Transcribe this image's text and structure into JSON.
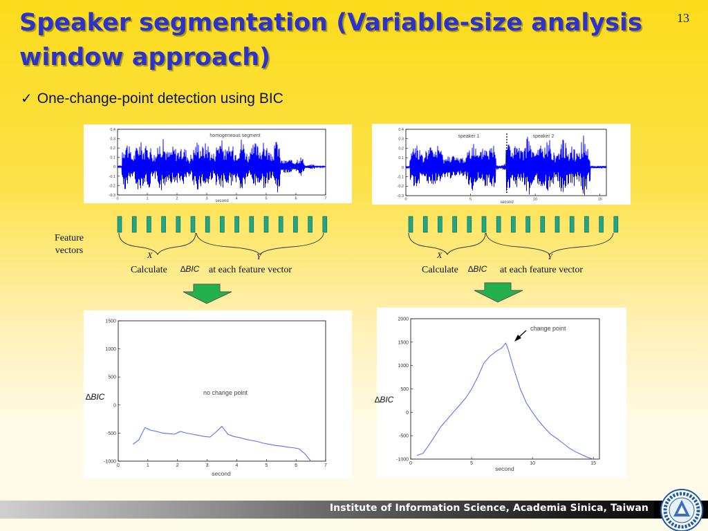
{
  "slide": {
    "title": "Speaker segmentation (Variable-size analysis window approach)",
    "page_number": "13",
    "bullet_mark": "✓",
    "bullet_text": "One-change-point detection using BIC",
    "footer_text": "Institute of Information Science, Academia Sinica, Taiwan",
    "logo_icon": "academia-sinica-seal-icon"
  },
  "diagram": {
    "feature_vectors_label": [
      "Feature",
      "vectors"
    ],
    "x_label": "X",
    "y_label": "Y",
    "calculate_label": "Calculate",
    "delta_symbol": "∆",
    "bic_label": "BIC",
    "at_each_label": "at each feature vector",
    "vector_count": 15,
    "vector_color": "#1fa58a",
    "arrow_color": "#22b14c"
  },
  "left": {
    "waveform": {
      "title": "homogeneous segment",
      "xlabel": "second",
      "xticks": [
        "0",
        "1",
        "2",
        "3",
        "4",
        "5",
        "6",
        "7"
      ],
      "yticks": [
        "0.4",
        "0.3",
        "0.2",
        "0.1",
        "0",
        "-0.1",
        "-0.2",
        "-0.3"
      ],
      "xlim": [
        0,
        7
      ],
      "ylim": [
        -0.3,
        0.4
      ],
      "color": "#0000ff"
    },
    "bic_plot": {
      "annotation": "no change point",
      "xlabel": "second",
      "ylabel": "∆BIC",
      "xticks": [
        "0",
        "1",
        "2",
        "3",
        "4",
        "5",
        "6",
        "7"
      ],
      "yticks": [
        "1500",
        "1000",
        "500",
        "0",
        "-500",
        "-1000"
      ],
      "xlim": [
        0,
        7
      ],
      "ylim": [
        -1000,
        1500
      ],
      "color": "#5a72f0"
    }
  },
  "right": {
    "waveform": {
      "speaker1": "speaker 1",
      "speaker2": "speaker 2",
      "xlabel": "second",
      "xticks": [
        "0",
        "5",
        "10",
        "15"
      ],
      "yticks": [
        "0.4",
        "0.3",
        "0.2",
        "0.1",
        "0",
        "-0.1",
        "-0.2",
        "-0.3"
      ],
      "xlim": [
        0,
        15.5
      ],
      "ylim": [
        -0.3,
        0.4
      ],
      "change_at": 7.8,
      "color": "#0000ff"
    },
    "bic_plot": {
      "annotation": "change point",
      "xlabel": "second",
      "ylabel": "∆BIC",
      "xticks": [
        "0",
        "5",
        "10",
        "15"
      ],
      "yticks": [
        "2000",
        "1500",
        "1000",
        "500",
        "0",
        "-500",
        "-1000"
      ],
      "xlim": [
        0,
        15.5
      ],
      "ylim": [
        -1000,
        2000
      ],
      "color": "#5a72f0"
    }
  },
  "chart_data": [
    {
      "type": "line",
      "title": "no change point",
      "xlabel": "second",
      "ylabel": "∆BIC",
      "xlim": [
        0,
        7
      ],
      "ylim": [
        -1000,
        1500
      ],
      "x": [
        0.5,
        0.7,
        0.9,
        1.1,
        1.3,
        1.5,
        1.7,
        1.9,
        2.1,
        2.3,
        2.5,
        2.7,
        2.9,
        3.1,
        3.3,
        3.5,
        3.7,
        3.9,
        4.1,
        4.3,
        4.5,
        4.7,
        4.9,
        5.1,
        5.3,
        5.5,
        5.7,
        5.9,
        6.1,
        6.3,
        6.5
      ],
      "y": [
        -700,
        -620,
        -400,
        -450,
        -470,
        -500,
        -510,
        -520,
        -470,
        -500,
        -520,
        -540,
        -560,
        -570,
        -480,
        -380,
        -520,
        -560,
        -580,
        -610,
        -630,
        -650,
        -680,
        -700,
        -720,
        -730,
        -750,
        -760,
        -780,
        -870,
        -1000
      ]
    },
    {
      "type": "line",
      "title": "change point",
      "xlabel": "second",
      "ylabel": "∆BIC",
      "xlim": [
        0,
        15.5
      ],
      "ylim": [
        -1000,
        2000
      ],
      "x": [
        0.5,
        1.0,
        1.5,
        2.0,
        2.5,
        3.0,
        3.5,
        4.0,
        4.5,
        5.0,
        5.5,
        6.0,
        6.5,
        7.0,
        7.5,
        7.8,
        8.0,
        8.5,
        9.0,
        9.5,
        10.0,
        10.5,
        11.0,
        11.5,
        12.0,
        12.5,
        13.0,
        13.5,
        14.0,
        14.5,
        15.0
      ],
      "y": [
        -920,
        -880,
        -700,
        -500,
        -300,
        -150,
        0,
        150,
        300,
        500,
        750,
        1050,
        1200,
        1300,
        1380,
        1480,
        1350,
        900,
        500,
        200,
        0,
        -180,
        -330,
        -470,
        -560,
        -660,
        -760,
        -840,
        -900,
        -960,
        -1000
      ]
    }
  ]
}
